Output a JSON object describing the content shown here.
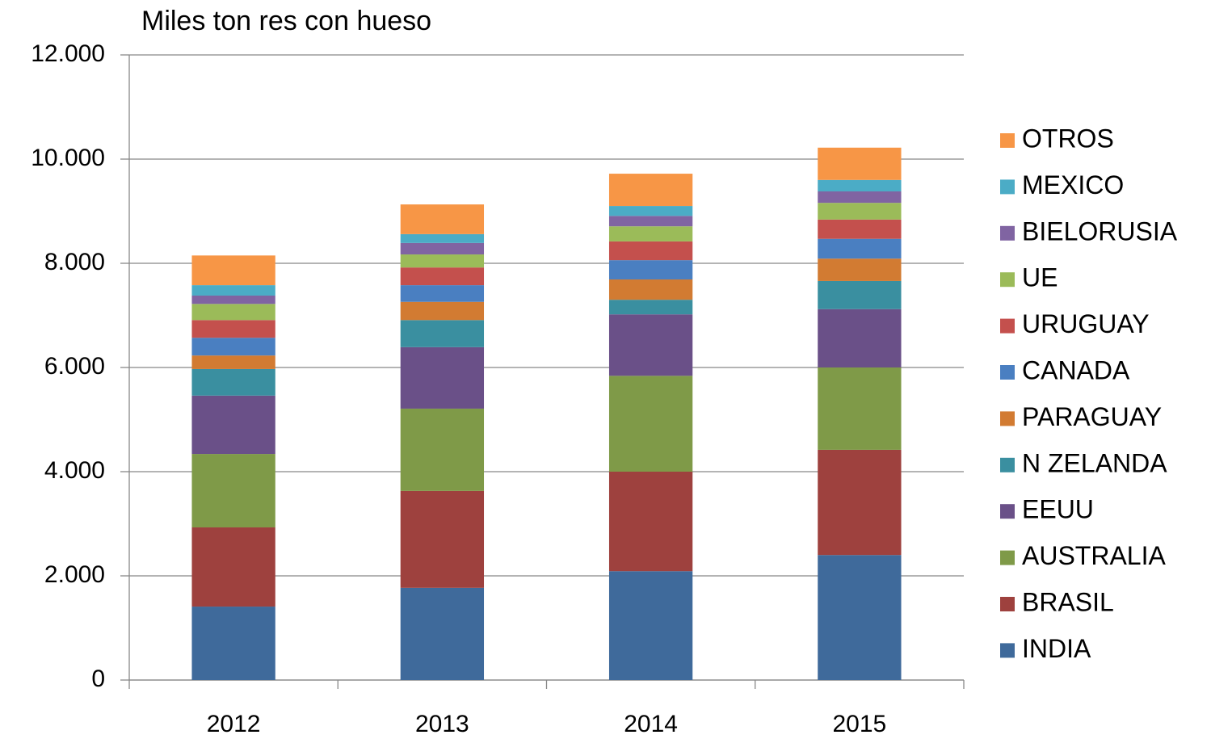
{
  "chart_data": {
    "type": "stacked_bar",
    "title": "Miles ton res con hueso",
    "categories": [
      "2012",
      "2013",
      "2014",
      "2015"
    ],
    "series": [
      {
        "name": "INDIA",
        "color": "#3f6a9b",
        "values": [
          1410,
          1770,
          2090,
          2400
        ]
      },
      {
        "name": "BRASIL",
        "color": "#9e413e",
        "values": [
          1520,
          1860,
          1910,
          2020
        ]
      },
      {
        "name": "AUSTRALIA",
        "color": "#7f9a48",
        "values": [
          1410,
          1580,
          1840,
          1580
        ]
      },
      {
        "name": "EEUU",
        "color": "#6a5088",
        "values": [
          1120,
          1180,
          1180,
          1120
        ]
      },
      {
        "name": "N ZELANDA",
        "color": "#3a8fa0",
        "values": [
          510,
          520,
          280,
          540
        ]
      },
      {
        "name": "PARAGUAY",
        "color": "#d27b32",
        "values": [
          260,
          350,
          390,
          430
        ]
      },
      {
        "name": "CANADA",
        "color": "#4a7fc1",
        "values": [
          340,
          320,
          370,
          380
        ]
      },
      {
        "name": "URUGUAY",
        "color": "#c4504d",
        "values": [
          340,
          340,
          360,
          370
        ]
      },
      {
        "name": "UE",
        "color": "#9bbb59",
        "values": [
          310,
          250,
          290,
          320
        ]
      },
      {
        "name": "BIELORUSIA",
        "color": "#8064a2",
        "values": [
          160,
          220,
          200,
          220
        ]
      },
      {
        "name": "MEXICO",
        "color": "#4bacc6",
        "values": [
          200,
          170,
          190,
          220
        ]
      },
      {
        "name": "OTROS",
        "color": "#f79646",
        "values": [
          570,
          570,
          620,
          620
        ]
      }
    ],
    "ylim": [
      0,
      12000
    ],
    "yticks": [
      0,
      {
        "value": 2000,
        "label": "2.000"
      },
      {
        "value": 4000,
        "label": "4.000"
      },
      {
        "value": 6000,
        "label": "6.000"
      },
      {
        "value": 8000,
        "label": "8.000"
      },
      {
        "value": 10000,
        "label": "10.000"
      },
      {
        "value": 12000,
        "label": "12.000"
      }
    ],
    "grid": true,
    "legend": "right"
  }
}
